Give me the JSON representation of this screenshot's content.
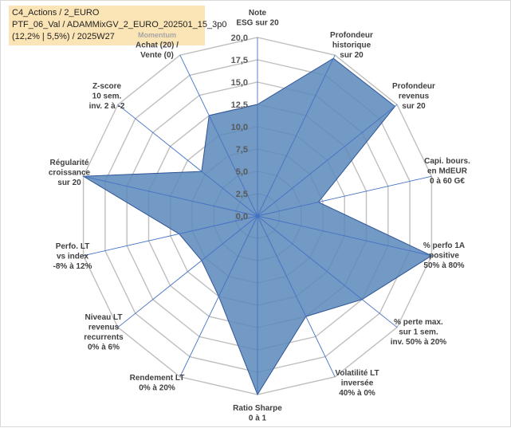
{
  "title_box": {
    "line1": "C4_Actions / 2_EURO",
    "line2": "PTF_06_Val / ADAMMixGV_2_EURO_202501_15_3p0",
    "line3": "(12,2% | 5,5%) / 2025W27"
  },
  "chart_data": {
    "type": "radar",
    "r_range": [
      0,
      20
    ],
    "r_ticks": [
      "0,0",
      "2,5",
      "5,0",
      "7,5",
      "10,0",
      "12,5",
      "15,0",
      "17,5",
      "20,0"
    ],
    "grid": true,
    "colors": {
      "fill": "#5b87bb",
      "stroke": "#2f5597",
      "grid": "#bfbfbf",
      "axis": "#4472c4"
    },
    "axes": [
      {
        "lines": [
          "Note",
          "ESG sur 20"
        ],
        "value": 12.5
      },
      {
        "lines": [
          "Profondeur",
          "historique",
          "sur 20"
        ],
        "value": 19.6
      },
      {
        "lines": [
          "Profondeur",
          "revenus",
          "sur 20"
        ],
        "value": 19.7
      },
      {
        "lines": [
          "Capi. bours.",
          "en MdEUR",
          "0 à 60 G€"
        ],
        "value": 7.0
      },
      {
        "lines": [
          "% perfo 1A",
          "positive",
          "50% à 80%"
        ],
        "value": 20.0
      },
      {
        "lines": [
          "% perte max.",
          "sur 1 sem.",
          "inv. 50% à 20%"
        ],
        "value": 15.0
      },
      {
        "lines": [
          "Volatilité LT",
          "inversée",
          "40% à 0%"
        ],
        "value": 12.5
      },
      {
        "lines": [
          "Ratio Sharpe",
          "0 à 1"
        ],
        "value": 20.0
      },
      {
        "lines": [
          "Rendement LT",
          "0% à 20%"
        ],
        "value": 10.0
      },
      {
        "lines": [
          "Niveau LT",
          "revenus",
          "recurrents",
          "0% à 6%"
        ],
        "value": 8.0
      },
      {
        "lines": [
          "Perfo. LT",
          "vs index",
          "-8% à 12%"
        ],
        "value": 9.0
      },
      {
        "lines": [
          "Régularité",
          "croissance",
          "sur 20"
        ],
        "value": 20.0
      },
      {
        "lines": [
          "Z-score",
          "10 sem.",
          "inv. 2 à -2"
        ],
        "value": 8.0
      },
      {
        "lines": [
          "Momentum",
          "Achat (20) /",
          "Vente (0)"
        ],
        "value": 12.5
      }
    ]
  }
}
